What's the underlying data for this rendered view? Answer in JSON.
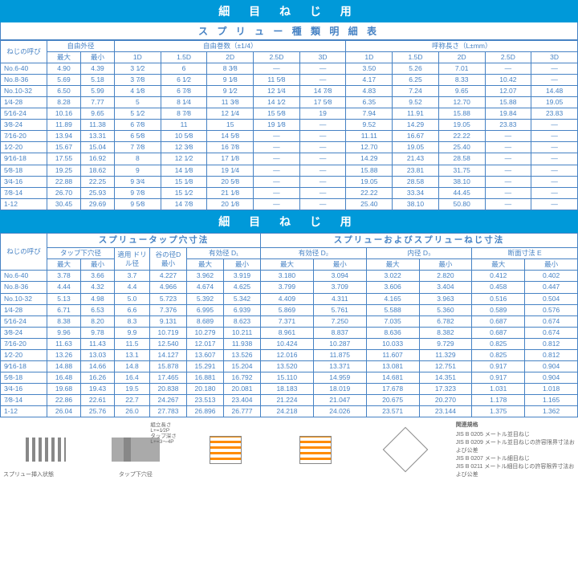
{
  "colors": {
    "banner_bg": "#0099d9",
    "border": "#4682c4",
    "text": "#4682c4",
    "accent": "#ff8c00"
  },
  "typography": {
    "table_fontsize": 8.5,
    "banner_fontsize": 14
  },
  "banner1": "細 目 ね じ 用",
  "subtitle1": "ス プ リ ュ ー 種 類 明 細 表",
  "t1": {
    "h": {
      "thread": "ねじの呼び",
      "free_od": "自由外径",
      "free_turns": "自由巻数（±1/4）",
      "nominal_len": "呼称長さ（L±mm）",
      "max": "最大",
      "min": "最小",
      "d": [
        "1D",
        "1.5D",
        "2D",
        "2.5D",
        "3D"
      ]
    },
    "rows": [
      {
        "t": "No.6-40",
        "od": [
          "4.90",
          "4.39"
        ],
        "turns": [
          "3 1⁄2",
          "6",
          "8 3⁄8",
          "—",
          "—"
        ],
        "len": [
          "3.50",
          "5.26",
          "7.01",
          "—",
          "—"
        ]
      },
      {
        "t": "No.8-36",
        "od": [
          "5.69",
          "5.18"
        ],
        "turns": [
          "3 7⁄8",
          "6 1⁄2",
          "9 1⁄8",
          "11 5⁄8",
          "—"
        ],
        "len": [
          "4.17",
          "6.25",
          "8.33",
          "10.42",
          "—"
        ]
      },
      {
        "t": "No.10-32",
        "od": [
          "6.50",
          "5.99"
        ],
        "turns": [
          "4 1⁄8",
          "6 7⁄8",
          "9 1⁄2",
          "12 1⁄4",
          "14 7⁄8"
        ],
        "len": [
          "4.83",
          "7.24",
          "9.65",
          "12.07",
          "14.48"
        ]
      },
      {
        "t": "1⁄4-28",
        "od": [
          "8.28",
          "7.77"
        ],
        "turns": [
          "5",
          "8 1⁄4",
          "11 3⁄8",
          "14 1⁄2",
          "17 5⁄8"
        ],
        "len": [
          "6.35",
          "9.52",
          "12.70",
          "15.88",
          "19.05"
        ]
      },
      {
        "t": "5⁄16-24",
        "od": [
          "10.16",
          "9.65"
        ],
        "turns": [
          "5 1⁄2",
          "8 7⁄8",
          "12 1⁄4",
          "15 5⁄8",
          "19"
        ],
        "len": [
          "7.94",
          "11.91",
          "15.88",
          "19.84",
          "23.83"
        ]
      },
      {
        "t": "3⁄8-24",
        "od": [
          "11.89",
          "11.38"
        ],
        "turns": [
          "6 7⁄8",
          "11",
          "15",
          "19 1⁄8",
          "—"
        ],
        "len": [
          "9.52",
          "14.29",
          "19.05",
          "23.83",
          "—"
        ]
      },
      {
        "t": "7⁄16-20",
        "od": [
          "13.94",
          "13.31"
        ],
        "turns": [
          "6 5⁄8",
          "10 5⁄8",
          "14 5⁄8",
          "—",
          "—"
        ],
        "len": [
          "11.11",
          "16.67",
          "22.22",
          "—",
          "—"
        ]
      },
      {
        "t": "1⁄2-20",
        "od": [
          "15.67",
          "15.04"
        ],
        "turns": [
          "7 7⁄8",
          "12 3⁄8",
          "16 7⁄8",
          "—",
          "—"
        ],
        "len": [
          "12.70",
          "19.05",
          "25.40",
          "—",
          "—"
        ]
      },
      {
        "t": "9⁄16-18",
        "od": [
          "17.55",
          "16.92"
        ],
        "turns": [
          "8",
          "12 1⁄2",
          "17 1⁄8",
          "—",
          "—"
        ],
        "len": [
          "14.29",
          "21.43",
          "28.58",
          "—",
          "—"
        ]
      },
      {
        "t": "5⁄8-18",
        "od": [
          "19.25",
          "18.62"
        ],
        "turns": [
          "9",
          "14 1⁄8",
          "19 1⁄4",
          "—",
          "—"
        ],
        "len": [
          "15.88",
          "23.81",
          "31.75",
          "—",
          "—"
        ]
      },
      {
        "t": "3⁄4-16",
        "od": [
          "22.88",
          "22.25"
        ],
        "turns": [
          "9 3⁄4",
          "15 1⁄8",
          "20 5⁄8",
          "—",
          "—"
        ],
        "len": [
          "19.05",
          "28.58",
          "38.10",
          "—",
          "—"
        ]
      },
      {
        "t": "7⁄8-14",
        "od": [
          "26.70",
          "25.93"
        ],
        "turns": [
          "9 7⁄8",
          "15 1⁄2",
          "21 1⁄8",
          "—",
          "—"
        ],
        "len": [
          "22.22",
          "33.34",
          "44.45",
          "—",
          "—"
        ]
      },
      {
        "t": "1-12",
        "od": [
          "30.45",
          "29.69"
        ],
        "turns": [
          "9 5⁄8",
          "14 7⁄8",
          "20 1⁄8",
          "—",
          "—"
        ],
        "len": [
          "25.40",
          "38.10",
          "50.80",
          "—",
          "—"
        ]
      }
    ]
  },
  "banner2": "細 目 ね じ 用",
  "half1": "スプリュータップ穴寸法",
  "half2": "スプリューおよびスプリューねじ寸法",
  "t2": {
    "h": {
      "thread": "ねじの呼び",
      "tap_hole": "タップ下穴径",
      "drill": "適用\nドリル径",
      "root": "谷の径D\n最小",
      "eff1": "有効径 D₁",
      "eff2": "有効径 D₂",
      "innerd": "内径 D₃",
      "section": "断面寸法 E",
      "max": "最大",
      "min": "最小"
    },
    "rows": [
      {
        "t": "No.6-40",
        "v": [
          "3.78",
          "3.66",
          "3.7",
          "4.227",
          "3.962",
          "3.919",
          "3.180",
          "3.094",
          "3.022",
          "2.820",
          "0.412",
          "0.402"
        ]
      },
      {
        "t": "No.8-36",
        "v": [
          "4.44",
          "4.32",
          "4.4",
          "4.966",
          "4.674",
          "4.625",
          "3.799",
          "3.709",
          "3.606",
          "3.404",
          "0.458",
          "0.447"
        ]
      },
      {
        "t": "No.10-32",
        "v": [
          "5.13",
          "4.98",
          "5.0",
          "5.723",
          "5.392",
          "5.342",
          "4.409",
          "4.311",
          "4.165",
          "3.963",
          "0.516",
          "0.504"
        ]
      },
      {
        "t": "1⁄4-28",
        "v": [
          "6.71",
          "6.53",
          "6.6",
          "7.376",
          "6.995",
          "6.939",
          "5.869",
          "5.761",
          "5.588",
          "5.360",
          "0.589",
          "0.576"
        ]
      },
      {
        "t": "5⁄16-24",
        "v": [
          "8.38",
          "8.20",
          "8.3",
          "9.131",
          "8.689",
          "8.623",
          "7.371",
          "7.250",
          "7.035",
          "6.782",
          "0.687",
          "0.674"
        ]
      },
      {
        "t": "3⁄8-24",
        "v": [
          "9.96",
          "9.78",
          "9.9",
          "10.719",
          "10.279",
          "10.211",
          "8.961",
          "8.837",
          "8.636",
          "8.382",
          "0.687",
          "0.674"
        ]
      },
      {
        "t": "7⁄16-20",
        "v": [
          "11.63",
          "11.43",
          "11.5",
          "12.540",
          "12.017",
          "11.938",
          "10.424",
          "10.287",
          "10.033",
          "9.729",
          "0.825",
          "0.812"
        ]
      },
      {
        "t": "1⁄2-20",
        "v": [
          "13.26",
          "13.03",
          "13.1",
          "14.127",
          "13.607",
          "13.526",
          "12.016",
          "11.875",
          "11.607",
          "11.329",
          "0.825",
          "0.812"
        ]
      },
      {
        "t": "9⁄16-18",
        "v": [
          "14.88",
          "14.66",
          "14.8",
          "15.878",
          "15.291",
          "15.204",
          "13.520",
          "13.371",
          "13.081",
          "12.751",
          "0.917",
          "0.904"
        ]
      },
      {
        "t": "5⁄8-18",
        "v": [
          "16.48",
          "16.26",
          "16.4",
          "17.465",
          "16.881",
          "16.792",
          "15.110",
          "14.959",
          "14.681",
          "14.351",
          "0.917",
          "0.904"
        ]
      },
      {
        "t": "3⁄4-16",
        "v": [
          "19.68",
          "19.43",
          "19.5",
          "20.838",
          "20.180",
          "20.081",
          "18.183",
          "18.019",
          "17.678",
          "17.323",
          "1.031",
          "1.018"
        ]
      },
      {
        "t": "7⁄8-14",
        "v": [
          "22.86",
          "22.61",
          "22.7",
          "24.267",
          "23.513",
          "23.404",
          "21.224",
          "21.047",
          "20.675",
          "20.270",
          "1.178",
          "1.165"
        ]
      },
      {
        "t": "1-12",
        "v": [
          "26.04",
          "25.76",
          "26.0",
          "27.783",
          "26.896",
          "26.777",
          "24.218",
          "24.026",
          "23.571",
          "23.144",
          "1.375",
          "1.362"
        ]
      }
    ]
  },
  "notes": {
    "title": "関連規格",
    "lines": [
      "JIS B 0205 メートル並目ねじ",
      "JIS B 0209 メートル並目ねじの許容限界寸法および公差",
      "JIS B 0207 メートル細目ねじ",
      "JIS B 0211 メートル細目ねじの許容限界寸法および公差"
    ]
  },
  "diag_caption": "スプリュー挿入状態",
  "diag_labels": {
    "l1": "組立長さ",
    "l2": "L+=1⁄2P",
    "l3": "タップ深さ",
    "l4": "L+=3〜4P"
  }
}
